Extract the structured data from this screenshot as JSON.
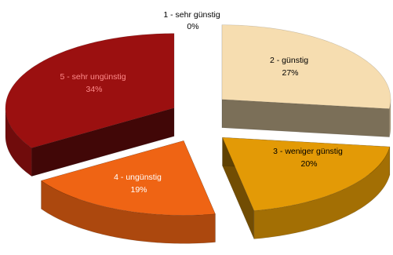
{
  "chart_data": {
    "type": "pie",
    "title": "",
    "style": "3d-exploded",
    "slices": [
      {
        "category": "1 - sehr günstig",
        "value": 0,
        "label": "0%",
        "color": "#c8c8c8"
      },
      {
        "category": "2 - günstig",
        "value": 27,
        "label": "27%",
        "color": "#f6ddb0"
      },
      {
        "category": "3 - weniger günstig",
        "value": 20,
        "label": "20%",
        "color": "#e39a06"
      },
      {
        "category": "4 - ungünstig",
        "value": 19,
        "label": "19%",
        "color": "#ef6414"
      },
      {
        "category": "5 - sehr ungünstig",
        "value": 34,
        "label": "34%",
        "color": "#9b1010"
      }
    ]
  }
}
